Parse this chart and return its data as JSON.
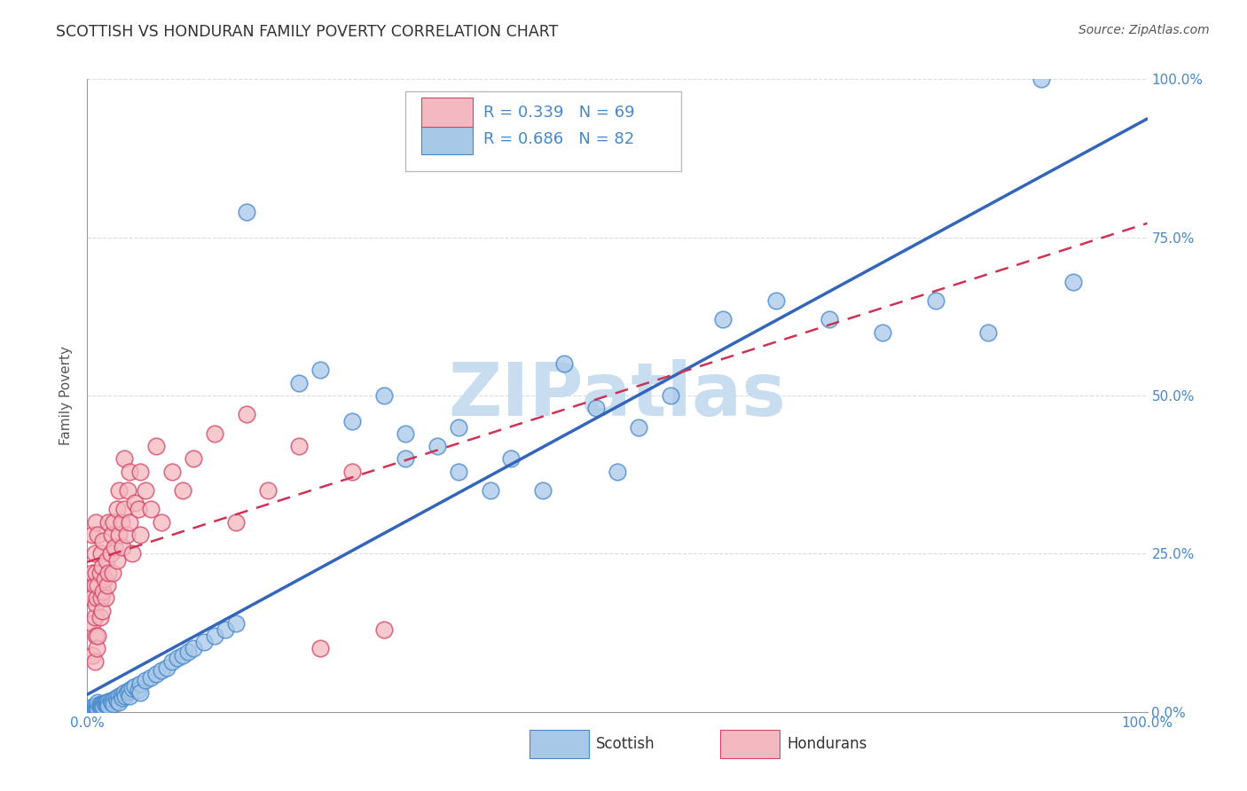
{
  "title": "SCOTTISH VS HONDURAN FAMILY POVERTY CORRELATION CHART",
  "source": "Source: ZipAtlas.com",
  "xlabel": "",
  "ylabel": "Family Poverty",
  "xlim": [
    0,
    1
  ],
  "ylim": [
    0,
    1
  ],
  "xticks": [
    0.0,
    0.25,
    0.5,
    0.75,
    1.0
  ],
  "yticks": [
    0.0,
    0.25,
    0.5,
    0.75,
    1.0
  ],
  "xtick_labels": [
    "0.0%",
    "",
    "",
    "",
    "100.0%"
  ],
  "ytick_labels_right": [
    "0.0%",
    "25.0%",
    "50.0%",
    "75.0%",
    "100.0%"
  ],
  "scottish_R": 0.686,
  "scottish_N": 82,
  "honduran_R": 0.339,
  "honduran_N": 69,
  "scottish_color": "#a8c8e8",
  "honduran_color": "#f4b8c0",
  "scottish_edge_color": "#4488cc",
  "honduran_edge_color": "#d44466",
  "scottish_line_color": "#3366bb",
  "honduran_line_color": "#cc3355",
  "tick_label_color": "#4488cc",
  "watermark": "ZIPatlas",
  "watermark_color": "#c8ddf0",
  "legend_text_color": "#4488cc",
  "legend_N_color": "#cc3355",
  "background_color": "#ffffff",
  "grid_color": "#cccccc",
  "scottish_points": [
    [
      0.005,
      0.005
    ],
    [
      0.005,
      0.008
    ],
    [
      0.005,
      0.002
    ],
    [
      0.007,
      0.006
    ],
    [
      0.007,
      0.01
    ],
    [
      0.008,
      0.005
    ],
    [
      0.009,
      0.007
    ],
    [
      0.01,
      0.01
    ],
    [
      0.01,
      0.005
    ],
    [
      0.01,
      0.015
    ],
    [
      0.012,
      0.008
    ],
    [
      0.012,
      0.012
    ],
    [
      0.013,
      0.01
    ],
    [
      0.014,
      0.012
    ],
    [
      0.015,
      0.013
    ],
    [
      0.015,
      0.008
    ],
    [
      0.016,
      0.014
    ],
    [
      0.017,
      0.012
    ],
    [
      0.018,
      0.015
    ],
    [
      0.019,
      0.013
    ],
    [
      0.02,
      0.016
    ],
    [
      0.02,
      0.01
    ],
    [
      0.022,
      0.018
    ],
    [
      0.023,
      0.015
    ],
    [
      0.025,
      0.02
    ],
    [
      0.025,
      0.012
    ],
    [
      0.027,
      0.022
    ],
    [
      0.028,
      0.018
    ],
    [
      0.03,
      0.025
    ],
    [
      0.03,
      0.015
    ],
    [
      0.032,
      0.027
    ],
    [
      0.033,
      0.022
    ],
    [
      0.035,
      0.03
    ],
    [
      0.036,
      0.025
    ],
    [
      0.038,
      0.032
    ],
    [
      0.04,
      0.035
    ],
    [
      0.04,
      0.025
    ],
    [
      0.042,
      0.038
    ],
    [
      0.045,
      0.04
    ],
    [
      0.048,
      0.035
    ],
    [
      0.05,
      0.045
    ],
    [
      0.05,
      0.03
    ],
    [
      0.055,
      0.05
    ],
    [
      0.06,
      0.055
    ],
    [
      0.065,
      0.06
    ],
    [
      0.07,
      0.065
    ],
    [
      0.075,
      0.07
    ],
    [
      0.08,
      0.08
    ],
    [
      0.085,
      0.085
    ],
    [
      0.09,
      0.09
    ],
    [
      0.095,
      0.095
    ],
    [
      0.1,
      0.1
    ],
    [
      0.11,
      0.11
    ],
    [
      0.12,
      0.12
    ],
    [
      0.13,
      0.13
    ],
    [
      0.14,
      0.14
    ],
    [
      0.15,
      0.79
    ],
    [
      0.2,
      0.52
    ],
    [
      0.22,
      0.54
    ],
    [
      0.25,
      0.46
    ],
    [
      0.28,
      0.5
    ],
    [
      0.3,
      0.4
    ],
    [
      0.3,
      0.44
    ],
    [
      0.33,
      0.42
    ],
    [
      0.35,
      0.45
    ],
    [
      0.35,
      0.38
    ],
    [
      0.38,
      0.35
    ],
    [
      0.4,
      0.4
    ],
    [
      0.43,
      0.35
    ],
    [
      0.45,
      0.55
    ],
    [
      0.48,
      0.48
    ],
    [
      0.5,
      0.38
    ],
    [
      0.52,
      0.45
    ],
    [
      0.55,
      0.5
    ],
    [
      0.6,
      0.62
    ],
    [
      0.65,
      0.65
    ],
    [
      0.7,
      0.62
    ],
    [
      0.75,
      0.6
    ],
    [
      0.8,
      0.65
    ],
    [
      0.85,
      0.6
    ],
    [
      0.9,
      1.0
    ],
    [
      0.93,
      0.68
    ]
  ],
  "honduran_points": [
    [
      0.005,
      0.09
    ],
    [
      0.005,
      0.14
    ],
    [
      0.005,
      0.18
    ],
    [
      0.005,
      0.22
    ],
    [
      0.005,
      0.28
    ],
    [
      0.007,
      0.08
    ],
    [
      0.007,
      0.15
    ],
    [
      0.007,
      0.2
    ],
    [
      0.007,
      0.25
    ],
    [
      0.008,
      0.12
    ],
    [
      0.008,
      0.17
    ],
    [
      0.008,
      0.22
    ],
    [
      0.008,
      0.3
    ],
    [
      0.009,
      0.1
    ],
    [
      0.009,
      0.18
    ],
    [
      0.01,
      0.12
    ],
    [
      0.01,
      0.2
    ],
    [
      0.01,
      0.28
    ],
    [
      0.012,
      0.15
    ],
    [
      0.012,
      0.22
    ],
    [
      0.013,
      0.18
    ],
    [
      0.013,
      0.25
    ],
    [
      0.014,
      0.16
    ],
    [
      0.014,
      0.23
    ],
    [
      0.015,
      0.19
    ],
    [
      0.015,
      0.27
    ],
    [
      0.016,
      0.21
    ],
    [
      0.017,
      0.18
    ],
    [
      0.018,
      0.24
    ],
    [
      0.019,
      0.2
    ],
    [
      0.02,
      0.22
    ],
    [
      0.02,
      0.3
    ],
    [
      0.022,
      0.25
    ],
    [
      0.023,
      0.28
    ],
    [
      0.024,
      0.22
    ],
    [
      0.025,
      0.3
    ],
    [
      0.026,
      0.26
    ],
    [
      0.028,
      0.24
    ],
    [
      0.028,
      0.32
    ],
    [
      0.03,
      0.28
    ],
    [
      0.03,
      0.35
    ],
    [
      0.032,
      0.3
    ],
    [
      0.033,
      0.26
    ],
    [
      0.035,
      0.32
    ],
    [
      0.035,
      0.4
    ],
    [
      0.037,
      0.28
    ],
    [
      0.038,
      0.35
    ],
    [
      0.04,
      0.3
    ],
    [
      0.04,
      0.38
    ],
    [
      0.042,
      0.25
    ],
    [
      0.045,
      0.33
    ],
    [
      0.048,
      0.32
    ],
    [
      0.05,
      0.28
    ],
    [
      0.05,
      0.38
    ],
    [
      0.055,
      0.35
    ],
    [
      0.06,
      0.32
    ],
    [
      0.065,
      0.42
    ],
    [
      0.07,
      0.3
    ],
    [
      0.08,
      0.38
    ],
    [
      0.09,
      0.35
    ],
    [
      0.1,
      0.4
    ],
    [
      0.12,
      0.44
    ],
    [
      0.14,
      0.3
    ],
    [
      0.15,
      0.47
    ],
    [
      0.17,
      0.35
    ],
    [
      0.2,
      0.42
    ],
    [
      0.22,
      0.1
    ],
    [
      0.25,
      0.38
    ],
    [
      0.28,
      0.13
    ]
  ]
}
